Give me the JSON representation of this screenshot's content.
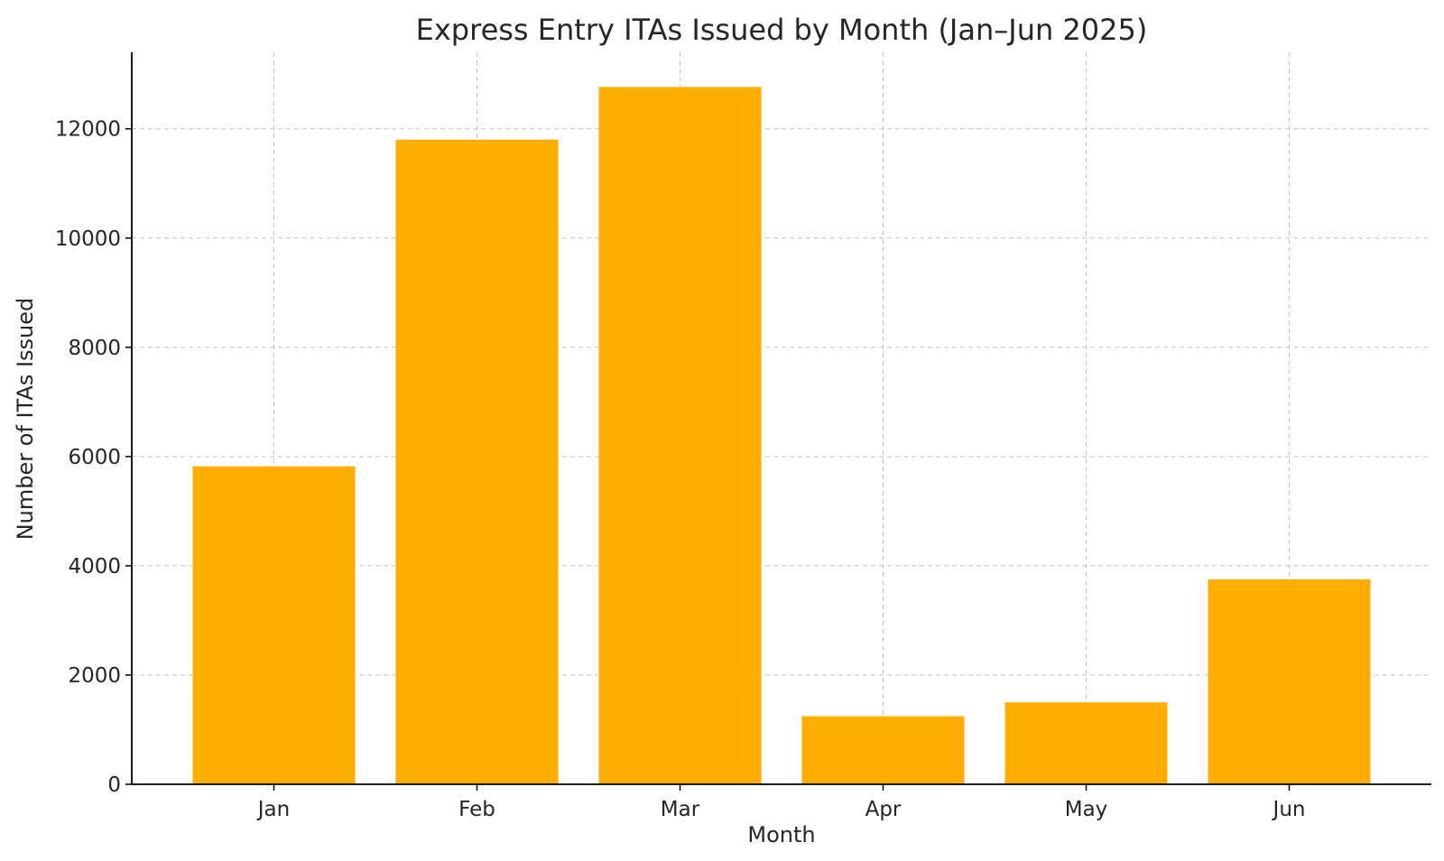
{
  "chart_data": {
    "type": "bar",
    "title": "Express Entry ITAs Issued by Month (Jan–Jun 2025)",
    "xlabel": "Month",
    "ylabel": "Number of ITAs Issued",
    "categories": [
      "Jan",
      "Feb",
      "Mar",
      "Apr",
      "May",
      "Jun"
    ],
    "values": [
      5821,
      11801,
      12766,
      1246,
      1500,
      3752
    ],
    "ylim": [
      0,
      13400
    ],
    "yticks": [
      0,
      2000,
      4000,
      6000,
      8000,
      10000,
      12000
    ],
    "grid": true,
    "legend": "none",
    "colors": {
      "bar": "#ffae00"
    }
  }
}
